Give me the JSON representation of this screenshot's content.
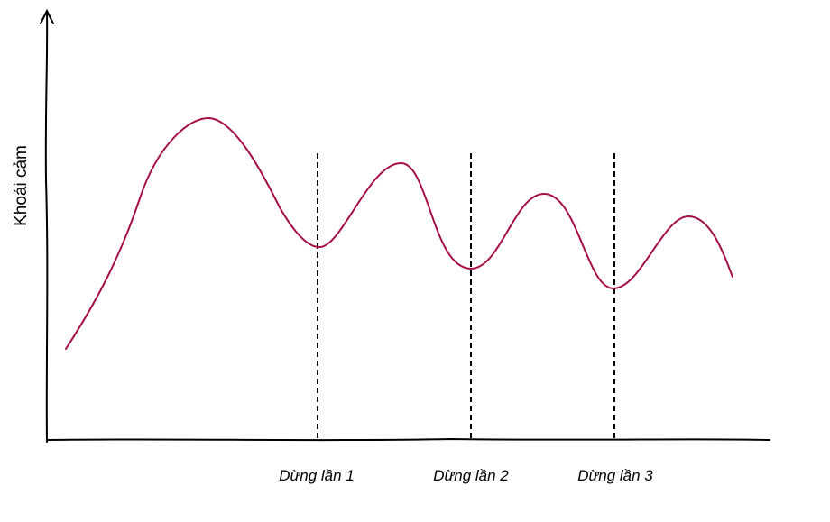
{
  "y_axis_label": "Khoái cảm",
  "stops": [
    {
      "label": "Dừng lần 1"
    },
    {
      "label": "Dừng lần 2"
    },
    {
      "label": "Dừng lần 3"
    }
  ]
}
